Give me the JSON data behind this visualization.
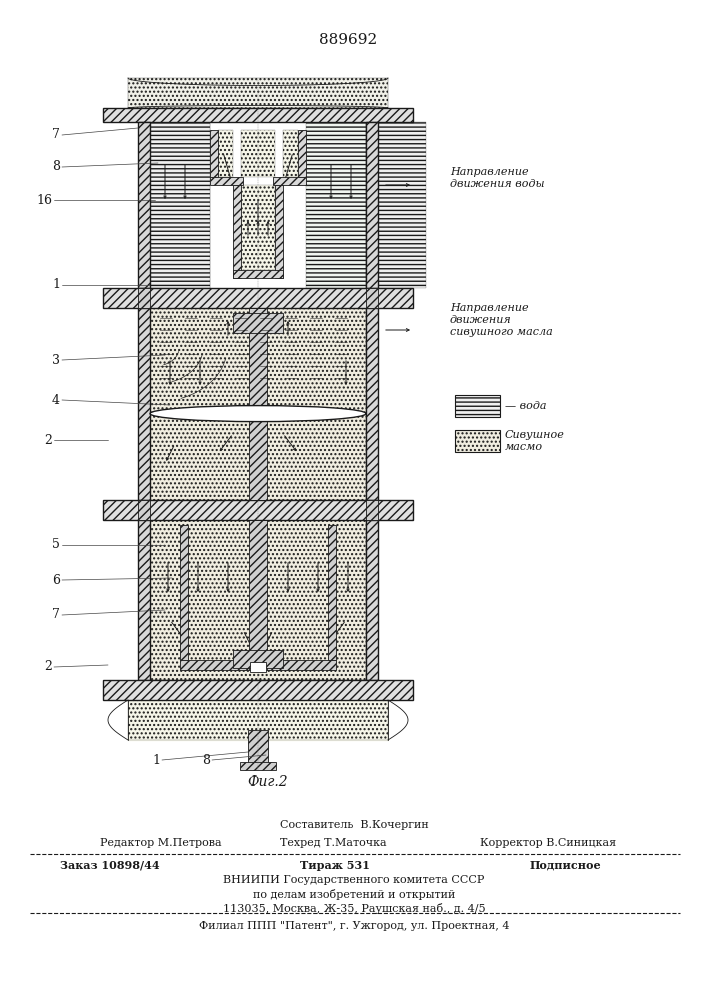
{
  "patent_number": "889692",
  "fig_label": "Фиг.2",
  "bg_color": "#ffffff",
  "dc": "#1a1a1a",
  "footer": {
    "line1_center": "Составитель  В.Кочергин",
    "line2_left": "Редактор М.Петрова",
    "line2_center": "Техред Т.Маточка",
    "line2_right": "Корректор В.Синицкая",
    "line3_left": "Заказ 10898/44",
    "line3_center": "Тираж 531",
    "line3_right": "Подписное",
    "line4": "ВНИИПИ Государственного комитета СССР",
    "line5": "по делам изобретений и открытий",
    "line6": "113035, Москва, Ж-35, Раушская наб., д. 4/5",
    "line7": "Филиал ППП \"Патент\", г. Ужгород, ул. Проектная, 4"
  },
  "legend": {
    "arrow1_text": "Направление\nдвижения воды",
    "arrow2_text": "Направление\nдвижения\nсивушного масла",
    "box1_text": "вода",
    "box2_text": "Сивушное\nмасмо"
  },
  "part_labels": [
    "7",
    "8",
    "16",
    "1",
    "3",
    "4",
    "2",
    "5",
    "6",
    "7",
    "2",
    "1",
    "8"
  ]
}
